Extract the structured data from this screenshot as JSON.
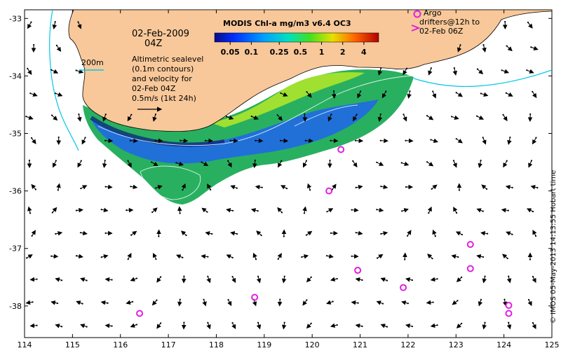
{
  "map": {
    "date_line1": "02-Feb-2009",
    "date_line2": "04Z",
    "contour_label": "200m",
    "info_lines": [
      "Altimetric sealevel",
      "(0.1m contours)",
      "and velocity for",
      "02-Feb 04Z"
    ],
    "scale_label": "0.5m/s (1kt 24h)",
    "colorbar_title": "MODIS Chl-a mg/m3 v6.4 OC3",
    "colorbar_ticks": [
      "0.05",
      "0.1",
      "0.25",
      "0.5",
      "1",
      "2",
      "4"
    ],
    "argo_lines": [
      "Argo",
      "drifters@12h to",
      "02-Feb 06Z"
    ],
    "credit": "© IMOS 05-May-2013 14:13:55 Hobart time",
    "colors": {
      "land": "#f8c89a",
      "coast": "#000000",
      "isobath": "#00c8e8",
      "argo": "#e020e0",
      "arrow": "#000000"
    },
    "lon_ticks": [
      "114",
      "115",
      "116",
      "117",
      "118",
      "119",
      "120",
      "121",
      "122",
      "123",
      "124",
      "125"
    ],
    "lat_ticks": [
      "-33",
      "-34",
      "-35",
      "-36",
      "-37",
      "-38"
    ],
    "lon_range": [
      114,
      125
    ],
    "lat_range": [
      -38.55,
      -32.85
    ],
    "argo_positions": [
      {
        "lon": 120.6,
        "lat": -35.28
      },
      {
        "lon": 120.35,
        "lat": -36.0
      },
      {
        "lon": 123.3,
        "lat": -36.93
      },
      {
        "lon": 123.3,
        "lat": -37.35
      },
      {
        "lon": 120.95,
        "lat": -37.38
      },
      {
        "lon": 121.9,
        "lat": -37.68
      },
      {
        "lon": 118.8,
        "lat": -37.85
      },
      {
        "lon": 124.1,
        "lat": -37.99
      },
      {
        "lon": 124.1,
        "lat": -38.13
      },
      {
        "lon": 116.4,
        "lat": -38.13
      }
    ]
  }
}
